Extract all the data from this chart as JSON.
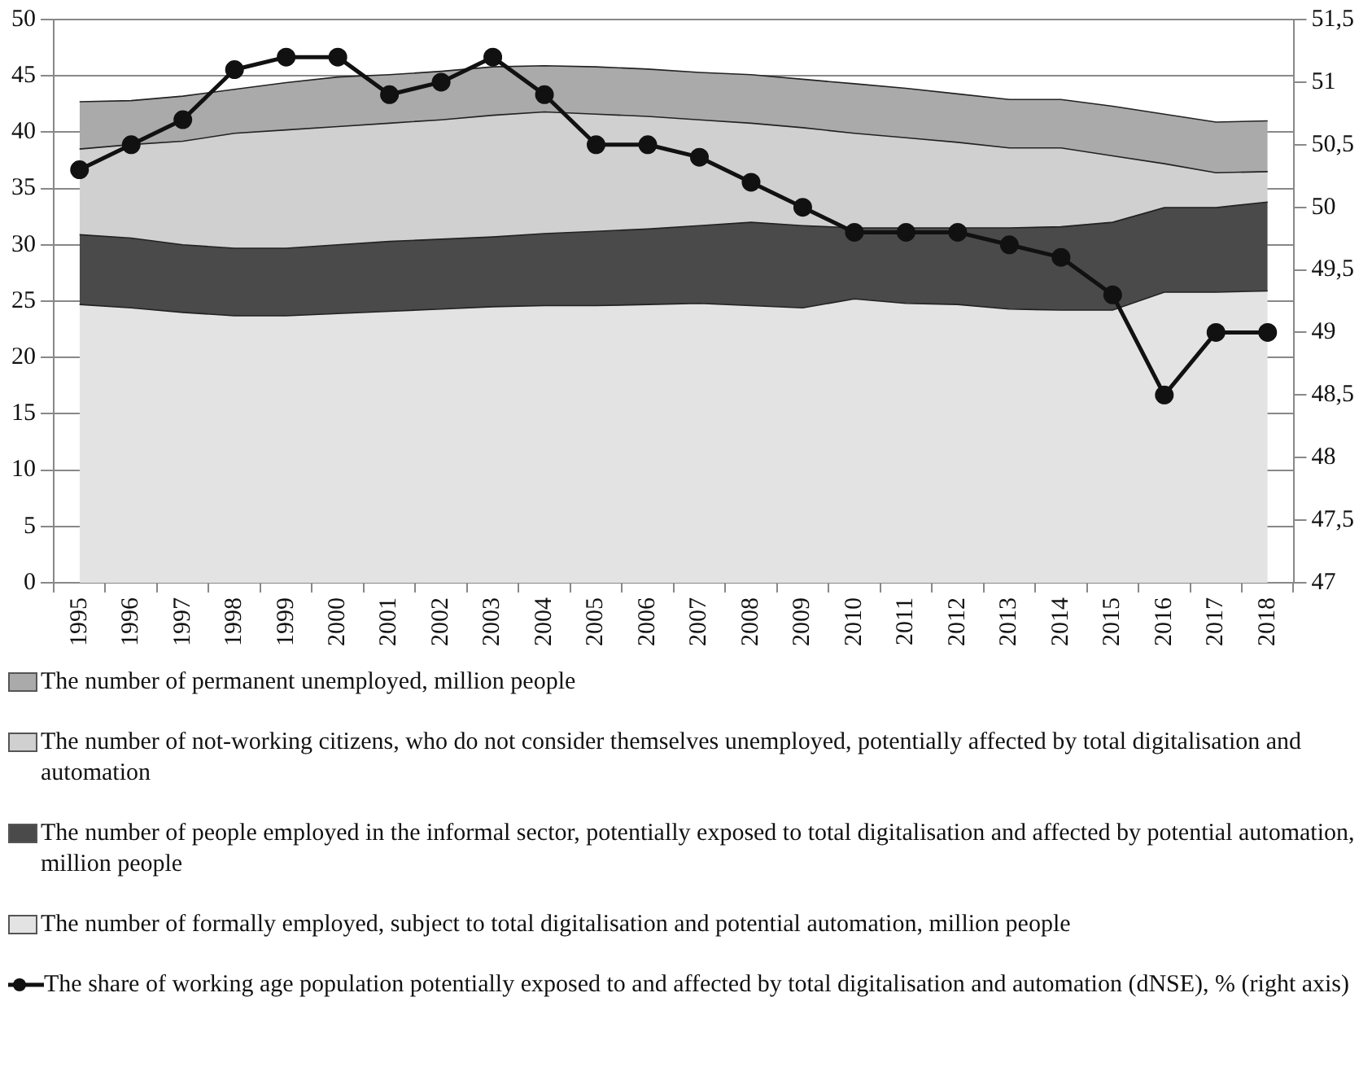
{
  "chart_data": {
    "type": "area",
    "stacked": true,
    "grid": "y",
    "legend": "bottom",
    "categories": [
      "1995",
      "1996",
      "1997",
      "1998",
      "1999",
      "2000",
      "2001",
      "2002",
      "2003",
      "2004",
      "2005",
      "2006",
      "2007",
      "2008",
      "2009",
      "2010",
      "2011",
      "2012",
      "2013",
      "2014",
      "2015",
      "2016",
      "2017",
      "2018"
    ],
    "ylim": [
      0,
      50
    ],
    "yticks": [
      0,
      5,
      10,
      15,
      20,
      25,
      30,
      35,
      40,
      45,
      50
    ],
    "y2lim": [
      47,
      51.5
    ],
    "y2ticks": [
      47,
      {
        "value": 47.5,
        "label": "47,5"
      },
      48,
      {
        "value": 48.5,
        "label": "48,5"
      },
      49,
      {
        "value": 49.5,
        "label": "49,5"
      },
      50,
      {
        "value": 50.5,
        "label": "50,5"
      },
      51,
      {
        "value": 51.5,
        "label": "51,5"
      }
    ],
    "series": [
      {
        "name": "The number of formally employed, subject to total digitalisation and potential automation, million people",
        "color": "#e3e3e3",
        "values": [
          24.7,
          24.4,
          24.0,
          23.7,
          23.7,
          23.9,
          24.1,
          24.3,
          24.5,
          24.6,
          24.6,
          24.7,
          24.8,
          24.6,
          24.4,
          25.2,
          24.8,
          24.7,
          24.3,
          24.2,
          24.2,
          25.8,
          25.8,
          25.9
        ]
      },
      {
        "name": "The number of people employed in the informal sector, potentially exposed to total digitalisation and affected by potential automation, million people",
        "color": "#4a4a4a",
        "values": [
          6.2,
          6.2,
          6.0,
          6.0,
          6.0,
          6.1,
          6.2,
          6.2,
          6.2,
          6.4,
          6.6,
          6.7,
          6.9,
          7.4,
          7.3,
          6.3,
          6.7,
          6.8,
          7.2,
          7.4,
          7.8,
          7.5,
          7.5,
          7.9
        ]
      },
      {
        "name": "The number of not-working citizens, who do not consider themselves unemployed, potentially affected by total digitalisation and automation",
        "color": "#d0d0d0",
        "values": [
          7.6,
          8.3,
          9.2,
          10.2,
          10.5,
          10.5,
          10.5,
          10.6,
          10.8,
          10.8,
          10.4,
          10.0,
          9.4,
          8.8,
          8.7,
          8.4,
          8.0,
          7.6,
          7.1,
          7.0,
          5.9,
          3.9,
          3.1,
          2.7
        ]
      },
      {
        "name": "The number of permanent unemployed, million people",
        "color": "#aaaaaa",
        "values": [
          4.2,
          3.9,
          4.0,
          3.9,
          4.2,
          4.4,
          4.3,
          4.3,
          4.3,
          4.1,
          4.2,
          4.2,
          4.2,
          4.3,
          4.3,
          4.4,
          4.4,
          4.3,
          4.3,
          4.3,
          4.4,
          4.4,
          4.5,
          4.5
        ]
      },
      {
        "name": "The share of working age population potentially exposed to and affected by total digitalisation and automation (dNSE), % (right axis)",
        "type": "line",
        "axis": "y2",
        "marker": "circle",
        "color": "#111111",
        "values": [
          50.3,
          50.5,
          50.7,
          51.1,
          51.2,
          51.2,
          50.9,
          51.0,
          51.2,
          50.9,
          50.5,
          50.5,
          50.4,
          50.2,
          50.0,
          49.8,
          49.8,
          49.8,
          49.7,
          49.6,
          49.3,
          48.5,
          49.0,
          49.0
        ]
      }
    ]
  }
}
